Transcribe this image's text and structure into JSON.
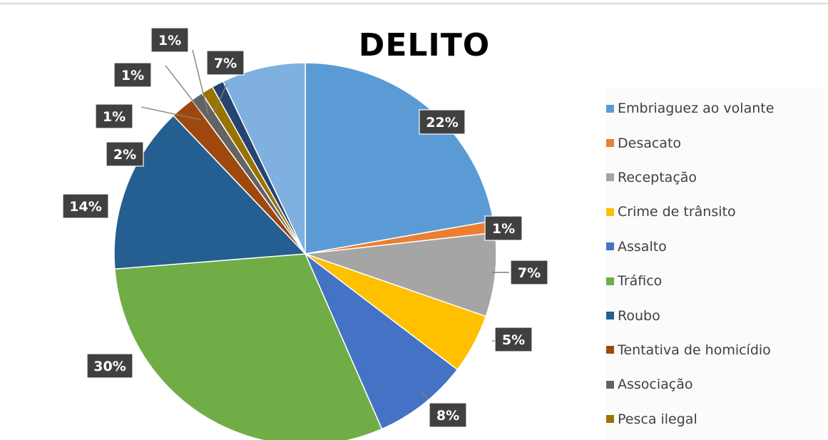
{
  "chart_data": {
    "type": "pie",
    "title": "DELITO",
    "legend_position": "right",
    "slices": [
      {
        "label": "Embriaguez ao volante",
        "value": 22,
        "display": "22%",
        "color": "#5b9bd5"
      },
      {
        "label": "Desacato",
        "value": 1,
        "display": "1%",
        "color": "#ed7d31"
      },
      {
        "label": "Receptação",
        "value": 7,
        "display": "7%",
        "color": "#a5a5a5"
      },
      {
        "label": "Crime de trânsito",
        "value": 5,
        "display": "5%",
        "color": "#ffc000"
      },
      {
        "label": "Assalto",
        "value": 8,
        "display": "8%",
        "color": "#4472c4"
      },
      {
        "label": "Tráfico",
        "value": 30,
        "display": "30%",
        "color": "#70ad47"
      },
      {
        "label": "Roubo",
        "value": 14,
        "display": "14%",
        "color": "#255e91"
      },
      {
        "label": "Tentativa de homicídio",
        "value": 2,
        "display": "2%",
        "color": "#9e480e"
      },
      {
        "label": "Associação",
        "value": 1,
        "display": "1%",
        "color": "#636363"
      },
      {
        "label": "Pesca ilegal",
        "value": 1,
        "display": "1%",
        "color": "#997300"
      },
      {
        "label": "",
        "value": 1,
        "display": "1%",
        "color": "#26446f"
      },
      {
        "label": "",
        "value": 7,
        "display": "7%",
        "color": "#7fb0e0"
      }
    ]
  }
}
